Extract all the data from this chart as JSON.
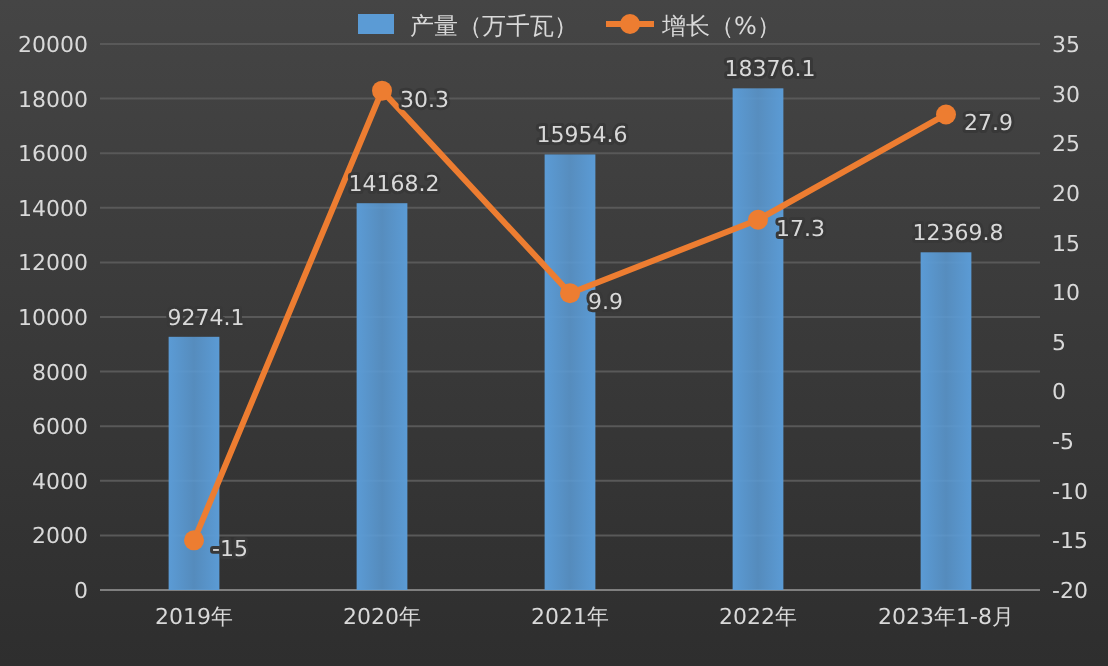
{
  "chart_data": {
    "type": "bar",
    "categories": [
      "2019年",
      "2020年",
      "2021年",
      "2022年",
      "2023年1-8月"
    ],
    "series": [
      {
        "name": "产量（万千瓦）",
        "color": "#5b9bd5",
        "values": [
          9274.1,
          14168.2,
          15954.6,
          18376.1,
          12369.8
        ]
      },
      {
        "name": "增长（%）",
        "type": "line",
        "axis": "y2",
        "color": "#ed7d31",
        "values": [
          -15,
          30.3,
          9.9,
          17.3,
          27.9
        ]
      }
    ],
    "ylim": [
      0,
      20000
    ],
    "yticks": [
      0,
      2000,
      4000,
      6000,
      8000,
      10000,
      12000,
      14000,
      16000,
      18000,
      20000
    ],
    "y2lim": [
      -20,
      35
    ],
    "y2ticks": [
      -20,
      -15,
      -10,
      -5,
      0,
      5,
      10,
      15,
      20,
      25,
      30,
      35
    ],
    "grid": "y",
    "legend": "top",
    "marker": "circle",
    "data_labels": true
  }
}
